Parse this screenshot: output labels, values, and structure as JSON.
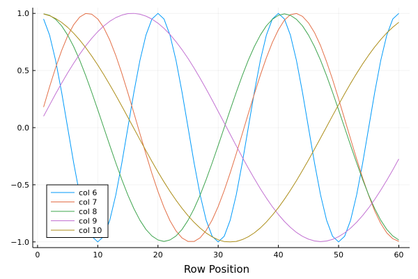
{
  "chart_data": {
    "type": "line",
    "xlabel": "Row Position",
    "ylabel": "",
    "title": "",
    "xlim": [
      -0.8,
      61.8
    ],
    "ylim": [
      -1.05,
      1.05
    ],
    "xticks": [
      0,
      10,
      20,
      30,
      40,
      50,
      60
    ],
    "yticks": [
      -1.0,
      -0.5,
      0.0,
      0.5,
      1.0
    ],
    "ytick_labels": [
      "−1.0",
      "−0.5",
      "0.0",
      "0.5",
      "1.0"
    ],
    "grid": true,
    "legend_position": "bottom-left",
    "x": [
      1,
      2,
      3,
      4,
      5,
      6,
      7,
      8,
      9,
      10,
      11,
      12,
      13,
      14,
      15,
      16,
      17,
      18,
      19,
      20,
      21,
      22,
      23,
      24,
      25,
      26,
      27,
      28,
      29,
      30,
      31,
      32,
      33,
      34,
      35,
      36,
      37,
      38,
      39,
      40,
      41,
      42,
      43,
      44,
      45,
      46,
      47,
      48,
      49,
      50,
      51,
      52,
      53,
      54,
      55,
      56,
      57,
      58,
      59,
      60
    ],
    "series": [
      {
        "name": "col 6",
        "color": "#009AFA",
        "values": [
          0.951,
          0.809,
          0.588,
          0.309,
          0.0,
          -0.309,
          -0.588,
          -0.809,
          -0.951,
          -1.0,
          -0.951,
          -0.809,
          -0.588,
          -0.309,
          0.0,
          0.309,
          0.588,
          0.809,
          0.951,
          1.0,
          0.951,
          0.809,
          0.588,
          0.309,
          0.0,
          -0.309,
          -0.588,
          -0.809,
          -0.951,
          -1.0,
          -0.951,
          -0.809,
          -0.588,
          -0.309,
          0.0,
          0.309,
          0.588,
          0.809,
          0.951,
          1.0,
          0.951,
          0.809,
          0.588,
          0.309,
          0.0,
          -0.309,
          -0.588,
          -0.809,
          -0.951,
          -1.0,
          -0.951,
          -0.809,
          -0.588,
          -0.309,
          0.0,
          0.309,
          0.588,
          0.809,
          0.951,
          1.0
        ]
      },
      {
        "name": "col 7",
        "color": "#E36F47",
        "values": [
          0.18,
          0.358,
          0.525,
          0.675,
          0.802,
          0.901,
          0.968,
          0.999,
          0.993,
          0.951,
          0.874,
          0.766,
          0.631,
          0.475,
          0.305,
          0.128,
          -0.052,
          -0.23,
          -0.402,
          -0.559,
          -0.698,
          -0.815,
          -0.904,
          -0.966,
          -0.996,
          -0.996,
          -0.964,
          -0.9,
          -0.808,
          -0.69,
          -0.551,
          -0.395,
          -0.228,
          -0.054,
          0.122,
          0.294,
          0.459,
          0.611,
          0.746,
          0.857,
          0.941,
          0.989,
          0.999,
          0.974,
          0.917,
          0.832,
          0.718,
          0.577,
          0.422,
          0.252,
          0.076,
          -0.101,
          -0.275,
          -0.441,
          -0.594,
          -0.729,
          -0.838,
          -0.921,
          -0.972,
          -0.995
        ]
      },
      {
        "name": "col 8",
        "color": "#3EA44E",
        "values": [
          0.996,
          0.983,
          0.948,
          0.891,
          0.81,
          0.709,
          0.59,
          0.455,
          0.309,
          0.156,
          -0.0,
          -0.156,
          -0.309,
          -0.455,
          -0.59,
          -0.709,
          -0.81,
          -0.891,
          -0.948,
          -0.983,
          -0.996,
          -0.983,
          -0.948,
          -0.891,
          -0.81,
          -0.709,
          -0.59,
          -0.455,
          -0.309,
          -0.156,
          -0.0,
          0.156,
          0.309,
          0.455,
          0.59,
          0.709,
          0.81,
          0.891,
          0.948,
          0.983,
          0.996,
          0.983,
          0.948,
          0.891,
          0.81,
          0.709,
          0.59,
          0.455,
          0.309,
          0.156,
          -0.0,
          -0.156,
          -0.309,
          -0.455,
          -0.59,
          -0.709,
          -0.81,
          -0.891,
          -0.948,
          -0.983
        ]
      },
      {
        "name": "col 9",
        "color": "#C271D2",
        "values": [
          0.1,
          0.198,
          0.296,
          0.389,
          0.479,
          0.564,
          0.643,
          0.716,
          0.782,
          0.84,
          0.89,
          0.931,
          0.963,
          0.985,
          0.998,
          1.0,
          0.993,
          0.976,
          0.95,
          0.914,
          0.869,
          0.815,
          0.752,
          0.682,
          0.605,
          0.521,
          0.432,
          0.339,
          0.242,
          0.142,
          0.042,
          -0.059,
          -0.159,
          -0.258,
          -0.354,
          -0.446,
          -0.534,
          -0.616,
          -0.692,
          -0.76,
          -0.821,
          -0.873,
          -0.917,
          -0.951,
          -0.976,
          -0.991,
          -0.997,
          -0.992,
          -0.978,
          -0.954,
          -0.921,
          -0.879,
          -0.828,
          -0.769,
          -0.702,
          -0.628,
          -0.547,
          -0.461,
          -0.37,
          -0.274
        ]
      },
      {
        "name": "col 10",
        "color": "#AC8D18",
        "values": [
          0.995,
          0.98,
          0.955,
          0.921,
          0.878,
          0.826,
          0.767,
          0.7,
          0.627,
          0.548,
          0.464,
          0.375,
          0.283,
          0.188,
          0.091,
          -0.007,
          -0.105,
          -0.201,
          -0.296,
          -0.388,
          -0.475,
          -0.558,
          -0.635,
          -0.706,
          -0.771,
          -0.829,
          -0.879,
          -0.922,
          -0.956,
          -0.981,
          -0.997,
          -1.0,
          -0.996,
          -0.98,
          -0.955,
          -0.921,
          -0.878,
          -0.826,
          -0.766,
          -0.7,
          -0.627,
          -0.548,
          -0.464,
          -0.375,
          -0.283,
          -0.188,
          -0.091,
          0.007,
          0.105,
          0.201,
          0.296,
          0.388,
          0.475,
          0.558,
          0.635,
          0.706,
          0.771,
          0.829,
          0.879,
          0.922
        ]
      }
    ]
  }
}
